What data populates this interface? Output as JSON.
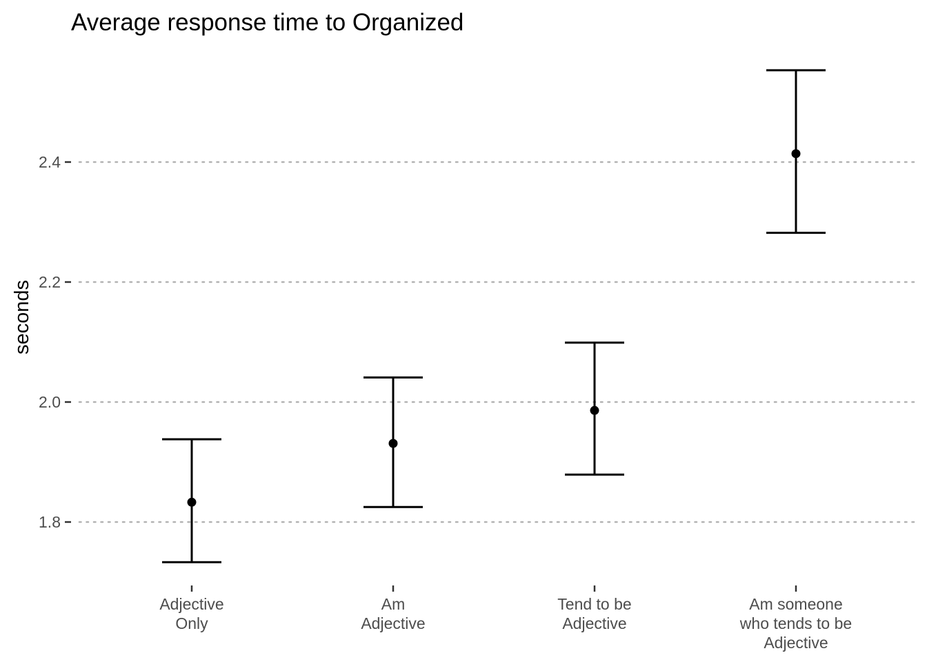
{
  "chart_data": {
    "type": "scatter",
    "title": "Average response time to Organized",
    "xlabel": "",
    "ylabel": "seconds",
    "categories": [
      [
        "Adjective",
        "Only"
      ],
      [
        "Am",
        "Adjective"
      ],
      [
        "Tend to be",
        "Adjective"
      ],
      [
        "Am someone",
        "who tends to be",
        "Adjective"
      ]
    ],
    "values": [
      1.833,
      1.931,
      1.986,
      2.414
    ],
    "error_low": [
      1.733,
      1.825,
      1.879,
      2.282
    ],
    "error_high": [
      1.938,
      2.041,
      2.099,
      2.553
    ],
    "y_ticks": [
      1.8,
      2.0,
      2.2,
      2.4
    ],
    "y_tick_labels": [
      "1.8",
      "2.0",
      "2.2",
      "2.4"
    ],
    "ylim": [
      1.69,
      2.58
    ],
    "grid": "horizontal dotted",
    "colors": {
      "point": "#000000",
      "errorbar": "#000000",
      "grid": "#b3b3b3",
      "tick_text": "#4d4d4d"
    }
  }
}
